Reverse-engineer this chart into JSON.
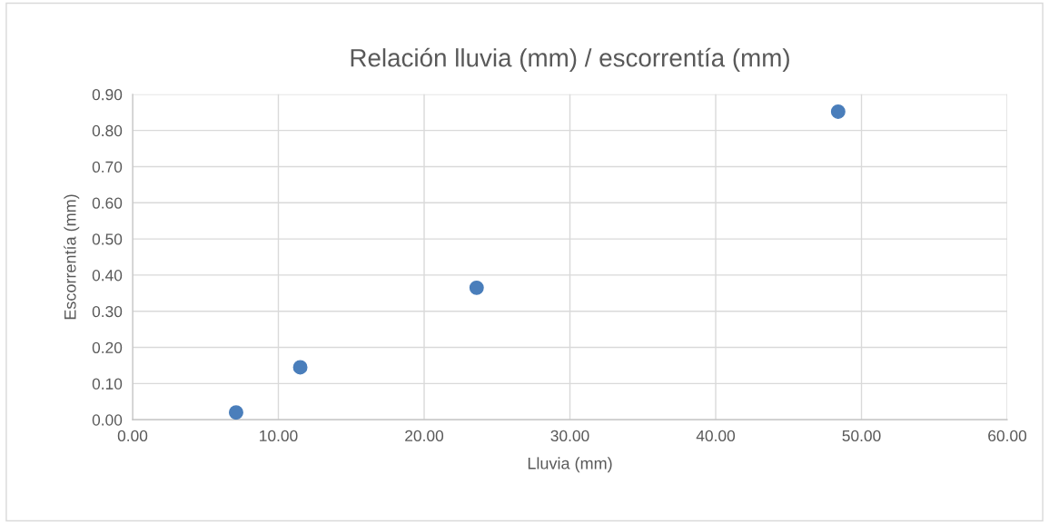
{
  "chart_data": {
    "type": "scatter",
    "title": "Relación lluvia (mm) / escorrentía (mm)",
    "xlabel": "Lluvia (mm)",
    "ylabel": "Escorrentía (mm)",
    "x": [
      7.1,
      11.5,
      23.6,
      48.4
    ],
    "series": [
      {
        "color": "#4a7ebb",
        "values": [
          0.02,
          0.145,
          0.365,
          0.852
        ]
      }
    ],
    "xlim": [
      0,
      60
    ],
    "xticks": [
      {
        "value": 0,
        "label": "0.00"
      },
      {
        "value": 10,
        "label": "10.00"
      },
      {
        "value": 20,
        "label": "20.00"
      },
      {
        "value": 30,
        "label": "30.00"
      },
      {
        "value": 40,
        "label": "40.00"
      },
      {
        "value": 50,
        "label": "50.00"
      },
      {
        "value": 60,
        "label": "60.00"
      }
    ],
    "ylim": [
      0,
      0.9
    ],
    "yticks": [
      {
        "value": 0,
        "label": "0.00"
      },
      {
        "value": 0.1,
        "label": "0.10"
      },
      {
        "value": 0.2,
        "label": "0.20"
      },
      {
        "value": 0.3,
        "label": "0.30"
      },
      {
        "value": 0.4,
        "label": "0.40"
      },
      {
        "value": 0.5,
        "label": "0.50"
      },
      {
        "value": 0.6,
        "label": "0.60"
      },
      {
        "value": 0.7,
        "label": "0.70"
      },
      {
        "value": 0.8,
        "label": "0.80"
      },
      {
        "value": 0.9,
        "label": "0.90"
      }
    ],
    "grid": true,
    "marker": "circle"
  }
}
